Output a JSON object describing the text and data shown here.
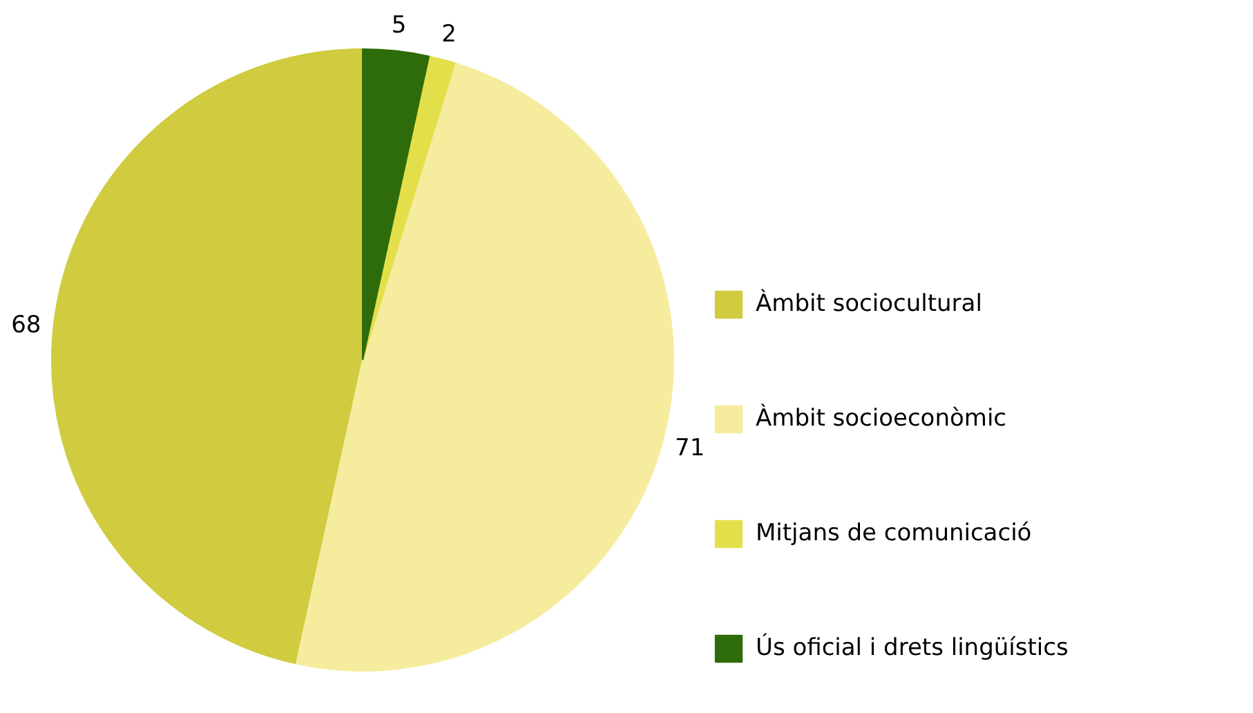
{
  "chart_data": {
    "type": "pie",
    "categories": [
      "Àmbit sociocultural",
      "Àmbit socioeconòmic",
      "Mitjans de comunicació",
      "Ús oficial i drets lingüístics"
    ],
    "values": [
      68,
      71,
      2,
      5
    ],
    "colors": [
      "#d0cb3f",
      "#f5ec9e",
      "#e3df4a",
      "#2e6b0a"
    ],
    "data_labels": true,
    "legend": "right"
  }
}
